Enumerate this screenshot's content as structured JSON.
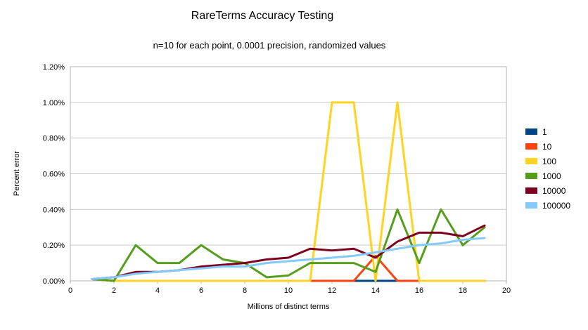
{
  "chart_data": {
    "type": "line",
    "title": "RareTerms Accuracy Testing",
    "subtitle": "n=10 for each point, 0.0001 precision, randomized values",
    "xlabel": "Millions of distinct terms",
    "ylabel": "Percent error",
    "xlim": [
      0,
      20
    ],
    "ylim": [
      0,
      1.2
    ],
    "grid": "horizontal",
    "legend_position": "right",
    "x": [
      1,
      2,
      3,
      4,
      5,
      6,
      7,
      8,
      9,
      10,
      11,
      12,
      13,
      14,
      15,
      16,
      17,
      18,
      19
    ],
    "series": [
      {
        "name": "1",
        "color": "#004586",
        "values": [
          0.01,
          0.0,
          0.0,
          0.0,
          0.0,
          0.0,
          0.0,
          0.0,
          0.0,
          0.0,
          0.0,
          0.0,
          0.0,
          0.0,
          0.0,
          0.0,
          0.0,
          0.0,
          0.0
        ]
      },
      {
        "name": "10",
        "color": "#ff420e",
        "values": [
          0.01,
          0.0,
          0.0,
          0.0,
          0.0,
          0.0,
          0.0,
          0.0,
          0.0,
          0.0,
          0.0,
          0.0,
          0.0,
          0.14,
          0.0,
          0.0,
          0.0,
          0.0,
          0.0
        ]
      },
      {
        "name": "100",
        "color": "#ffd320",
        "values": [
          0.01,
          0.0,
          0.0,
          0.0,
          0.0,
          0.0,
          0.0,
          0.0,
          0.0,
          0.0,
          0.0,
          1.0,
          1.0,
          0.0,
          1.0,
          0.0,
          0.0,
          0.0,
          0.0
        ]
      },
      {
        "name": "1000",
        "color": "#579d1c",
        "values": [
          0.01,
          0.0,
          0.2,
          0.1,
          0.1,
          0.2,
          0.12,
          0.1,
          0.02,
          0.03,
          0.1,
          0.1,
          0.1,
          0.05,
          0.4,
          0.1,
          0.4,
          0.2,
          0.3
        ]
      },
      {
        "name": "10000",
        "color": "#7e0021",
        "values": [
          0.01,
          0.02,
          0.05,
          0.05,
          0.06,
          0.08,
          0.09,
          0.1,
          0.12,
          0.13,
          0.18,
          0.17,
          0.18,
          0.13,
          0.22,
          0.27,
          0.27,
          0.25,
          0.31
        ]
      },
      {
        "name": "100000",
        "color": "#83caff",
        "values": [
          0.01,
          0.02,
          0.04,
          0.05,
          0.06,
          0.07,
          0.08,
          0.08,
          0.1,
          0.11,
          0.12,
          0.13,
          0.14,
          0.16,
          0.18,
          0.2,
          0.21,
          0.23,
          0.24
        ]
      }
    ],
    "y_ticks": [
      {
        "v": 0.0,
        "label": "0.00%"
      },
      {
        "v": 0.2,
        "label": "0.20%"
      },
      {
        "v": 0.4,
        "label": "0.40%"
      },
      {
        "v": 0.6,
        "label": "0.60%"
      },
      {
        "v": 0.8,
        "label": "0.80%"
      },
      {
        "v": 1.0,
        "label": "1.00%"
      },
      {
        "v": 1.2,
        "label": "1.20%"
      }
    ],
    "x_ticks": [
      {
        "v": 0,
        "label": "0"
      },
      {
        "v": 2,
        "label": "2"
      },
      {
        "v": 4,
        "label": "4"
      },
      {
        "v": 6,
        "label": "6"
      },
      {
        "v": 8,
        "label": "8"
      },
      {
        "v": 10,
        "label": "10"
      },
      {
        "v": 12,
        "label": "12"
      },
      {
        "v": 14,
        "label": "14"
      },
      {
        "v": 16,
        "label": "16"
      },
      {
        "v": 18,
        "label": "18"
      },
      {
        "v": 20,
        "label": "20"
      }
    ]
  }
}
